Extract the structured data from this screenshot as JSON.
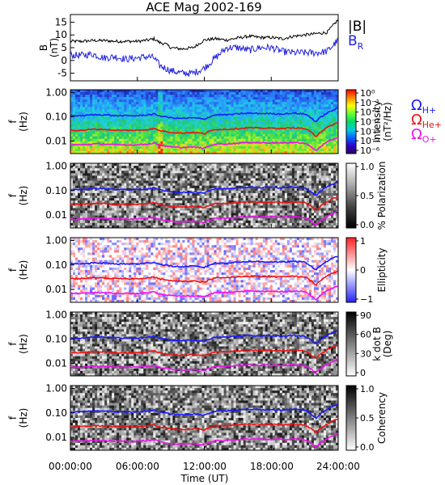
{
  "title": "ACE Mag 2002-169",
  "xaxis": {
    "label": "Time (UT)",
    "ticks": [
      "00:00:00",
      "06:00:00",
      "12:00:00",
      "18:00:00",
      "24:00:00"
    ],
    "range_hours": [
      0,
      24
    ]
  },
  "chart_data": [
    {
      "type": "line",
      "panel": "magnetic-field",
      "ylabel_lines": [
        "B",
        "(nT)"
      ],
      "ylim": [
        -8,
        18
      ],
      "yticks": [
        "15",
        "10",
        "5",
        "0",
        "-5"
      ],
      "ytick_values": [
        15,
        10,
        5,
        0,
        -5
      ],
      "x": [
        0,
        1,
        2,
        3,
        4,
        5,
        6,
        7,
        7.5,
        8,
        8.5,
        9,
        10,
        11,
        12,
        13,
        14,
        15,
        16,
        17,
        18,
        19,
        20,
        21,
        22,
        23,
        24
      ],
      "series": [
        {
          "name": "|B|",
          "color": "#000000",
          "values": [
            7.5,
            7.5,
            7.8,
            7.8,
            7.5,
            7.5,
            7.5,
            8,
            8.5,
            7,
            6.5,
            5,
            4.5,
            5,
            8,
            8.5,
            8,
            8.8,
            9.5,
            9,
            9,
            8.5,
            9.5,
            10,
            10.5,
            11,
            16
          ]
        },
        {
          "name": "B",
          "name_subscript": "R",
          "color": "#2020e0",
          "values": [
            2,
            2,
            2.5,
            1,
            1.5,
            0.5,
            1,
            1.5,
            1,
            -2,
            -3,
            -4,
            -5,
            -5,
            -3,
            1,
            5,
            5,
            4,
            5,
            5,
            3.5,
            3,
            3,
            3,
            3.5,
            8
          ]
        }
      ]
    },
    {
      "type": "heatmap",
      "panel": "intensity",
      "ylabel_lines": [
        "f",
        "(Hz)"
      ],
      "yscale": "log",
      "ylim": [
        0.003,
        1.3
      ],
      "yticks": [
        "1.00",
        "0.10",
        "0.01"
      ],
      "ytick_values": [
        1,
        0.1,
        0.01
      ],
      "colorbar": {
        "scale": "log",
        "ticks": [
          "10⁰",
          "10⁻¹",
          "10⁻²",
          "10⁻³",
          "10⁻⁴",
          "10⁻⁵",
          "10⁻⁶"
        ],
        "label_lines": [
          "Intensity",
          "(nT²/Hz)"
        ]
      }
    },
    {
      "type": "heatmap",
      "panel": "polarization",
      "ylabel_lines": [
        "f",
        "(Hz)"
      ],
      "yscale": "log",
      "yticks": [
        "1.00",
        "0.10",
        "0.01"
      ],
      "colorbar": {
        "ticks": [
          "1.0",
          "0.5",
          "0.0"
        ],
        "label_lines": [
          "% Polarization"
        ]
      }
    },
    {
      "type": "heatmap",
      "panel": "ellipticity",
      "ylabel_lines": [
        "f",
        "(Hz)"
      ],
      "yscale": "log",
      "yticks": [
        "1.00",
        "0.10",
        "0.01"
      ],
      "colorbar": {
        "ticks": [
          "1",
          "0",
          "−1"
        ],
        "label_lines": [
          "Ellipticity"
        ]
      }
    },
    {
      "type": "heatmap",
      "panel": "k-dot-b",
      "ylabel_lines": [
        "f",
        "(Hz)"
      ],
      "yscale": "log",
      "yticks": [
        "1.00",
        "0.10",
        "0.01"
      ],
      "colorbar": {
        "ticks": [
          "90",
          "60",
          "30",
          "0"
        ],
        "label_lines": [
          "k dot B",
          "(Deg)"
        ]
      }
    },
    {
      "type": "heatmap",
      "panel": "coherency",
      "ylabel_lines": [
        "f",
        "(Hz)"
      ],
      "yscale": "log",
      "yticks": [
        "1.00",
        "0.10",
        "0.01"
      ],
      "colorbar": {
        "ticks": [
          "1.0",
          "0.5",
          "0.0"
        ],
        "label_lines": [
          "Coherency"
        ]
      }
    }
  ],
  "gyrofrequency_overlay": {
    "x": [
      0,
      1,
      2,
      3,
      4,
      5,
      6,
      7,
      7.5,
      8,
      8.5,
      9,
      10,
      11,
      12,
      13,
      14,
      15,
      16,
      17,
      18,
      19,
      20,
      21,
      22,
      23,
      24
    ],
    "series": [
      {
        "symbol": "Ω",
        "subscript": "H+",
        "color": "#1a1aff",
        "values": [
          0.11,
          0.11,
          0.12,
          0.12,
          0.11,
          0.11,
          0.11,
          0.12,
          0.13,
          0.107,
          0.1,
          0.09,
          0.085,
          0.09,
          0.08,
          0.12,
          0.12,
          0.13,
          0.14,
          0.135,
          0.135,
          0.13,
          0.14,
          0.13,
          0.06,
          0.14,
          0.23
        ]
      },
      {
        "symbol": "Ω",
        "subscript": "He+",
        "color": "#ee1111",
        "values": [
          0.0275,
          0.0275,
          0.03,
          0.03,
          0.0275,
          0.0275,
          0.0275,
          0.03,
          0.0325,
          0.0267,
          0.025,
          0.0225,
          0.0212,
          0.0225,
          0.02,
          0.03,
          0.03,
          0.0325,
          0.035,
          0.0337,
          0.0337,
          0.0325,
          0.035,
          0.0325,
          0.015,
          0.035,
          0.0575
        ]
      },
      {
        "symbol": "Ω",
        "subscript": "O+",
        "color": "#ee11ee",
        "values": [
          0.0069,
          0.0069,
          0.0075,
          0.0075,
          0.0069,
          0.0069,
          0.0069,
          0.0075,
          0.0081,
          0.0067,
          0.0062,
          0.0056,
          0.0053,
          0.0056,
          0.005,
          0.0075,
          0.0075,
          0.0081,
          0.0087,
          0.0084,
          0.0084,
          0.0081,
          0.0087,
          0.0081,
          0.0038,
          0.0087,
          0.0144
        ]
      }
    ]
  }
}
